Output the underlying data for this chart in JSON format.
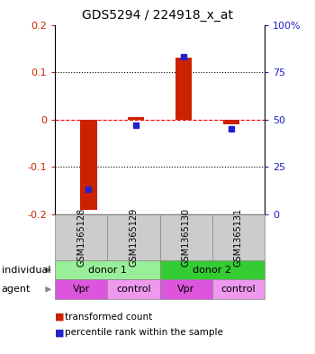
{
  "title": "GDS5294 / 224918_x_at",
  "samples": [
    "GSM1365128",
    "GSM1365129",
    "GSM1365130",
    "GSM1365131"
  ],
  "red_values": [
    -0.19,
    0.005,
    0.13,
    -0.01
  ],
  "blue_percentiles": [
    13,
    47,
    83,
    45
  ],
  "ylim_left": [
    -0.2,
    0.2
  ],
  "ylim_right": [
    0,
    100
  ],
  "left_ticks": [
    -0.2,
    -0.1,
    0.0,
    0.1,
    0.2
  ],
  "right_ticks": [
    0,
    25,
    50,
    75,
    100
  ],
  "left_tick_labels": [
    "-0.2",
    "-0.1",
    "0",
    "0.1",
    "0.2"
  ],
  "right_tick_labels": [
    "0",
    "25",
    "50",
    "75",
    "100%"
  ],
  "hlines": [
    0.1,
    0.0,
    -0.1
  ],
  "hline_styles": [
    "dotted",
    "dashed",
    "dotted"
  ],
  "hline_colors": [
    "black",
    "red",
    "black"
  ],
  "red_bar_width": 0.35,
  "red_color": "#cc2200",
  "blue_color": "#2222cc",
  "individual_labels": [
    "donor 1",
    "donor 2"
  ],
  "individual_color_light": "#99ee99",
  "individual_color_dark": "#33cc33",
  "agent_labels": [
    "Vpr",
    "control",
    "Vpr",
    "control"
  ],
  "agent_color": "#dd55dd",
  "agent_color_light": "#ee99ee",
  "sample_box_color": "#cccccc",
  "legend_red_label": "transformed count",
  "legend_blue_label": "percentile rank within the sample",
  "row_label_individual": "individual",
  "row_label_agent": "agent",
  "title_fontsize": 10,
  "tick_fontsize": 8,
  "label_fontsize": 8,
  "sample_fontsize": 7
}
